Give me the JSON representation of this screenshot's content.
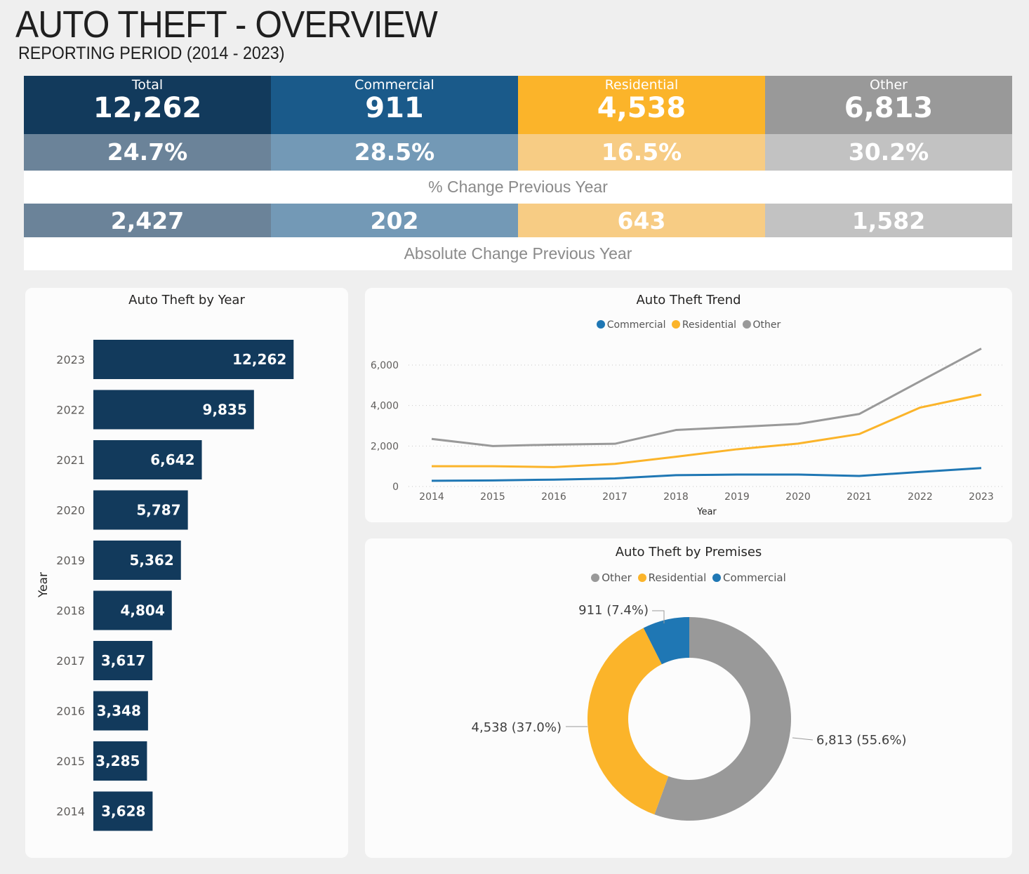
{
  "header": {
    "title": "AUTO THEFT - OVERVIEW",
    "subtitle": "REPORTING PERIOD (2014 - 2023)"
  },
  "kpis": [
    {
      "label": "Total",
      "value": "12,262",
      "pct_change": "24.7%",
      "abs_change": "2,427"
    },
    {
      "label": "Commercial",
      "value": "911",
      "pct_change": "28.5%",
      "abs_change": "202"
    },
    {
      "label": "Residential",
      "value": "4,538",
      "pct_change": "16.5%",
      "abs_change": "643"
    },
    {
      "label": "Other",
      "value": "6,813",
      "pct_change": "30.2%",
      "abs_change": "1,582"
    }
  ],
  "captions": {
    "pct": "% Change Previous Year",
    "abs": "Absolute Change Previous Year"
  },
  "colors": {
    "navy": "#123a5c",
    "commercial": "#1f77b4",
    "residential": "#fbb42a",
    "other": "#999999"
  },
  "chart_data": [
    {
      "type": "bar",
      "orientation": "horizontal",
      "title": "Auto Theft by Year",
      "ylabel": "Year",
      "categories": [
        "2023",
        "2022",
        "2021",
        "2020",
        "2019",
        "2018",
        "2017",
        "2016",
        "2015",
        "2014"
      ],
      "values": [
        12262,
        9835,
        6642,
        5787,
        5362,
        4804,
        3617,
        3348,
        3285,
        3628
      ],
      "data_labels": [
        "12,262",
        "9,835",
        "6,642",
        "5,787",
        "5,362",
        "4,804",
        "3,617",
        "3,348",
        "3,285",
        "3,628"
      ],
      "xlim": [
        0,
        15000
      ]
    },
    {
      "type": "line",
      "title": "Auto Theft Trend",
      "xlabel": "Year",
      "x": [
        "2014",
        "2015",
        "2016",
        "2017",
        "2018",
        "2019",
        "2020",
        "2021",
        "2022",
        "2023"
      ],
      "yticks": [
        "0",
        "2,000",
        "4,000",
        "6,000"
      ],
      "ylim": [
        0,
        7000
      ],
      "series": [
        {
          "name": "Commercial",
          "values": [
            280,
            300,
            340,
            400,
            560,
            590,
            590,
            520,
            720,
            911
          ]
        },
        {
          "name": "Residential",
          "values": [
            1000,
            1000,
            960,
            1120,
            1470,
            1840,
            2120,
            2590,
            3900,
            4538
          ]
        },
        {
          "name": "Other",
          "values": [
            2350,
            2000,
            2070,
            2110,
            2790,
            2940,
            3090,
            3580,
            5200,
            6813
          ]
        }
      ]
    },
    {
      "type": "pie",
      "subtype": "donut",
      "title": "Auto Theft by Premises",
      "slices": [
        {
          "name": "Other",
          "value": 6813,
          "label": "6,813 (55.6%)"
        },
        {
          "name": "Residential",
          "value": 4538,
          "label": "4,538 (37.0%)"
        },
        {
          "name": "Commercial",
          "value": 911,
          "label": "911 (7.4%)"
        }
      ]
    }
  ]
}
